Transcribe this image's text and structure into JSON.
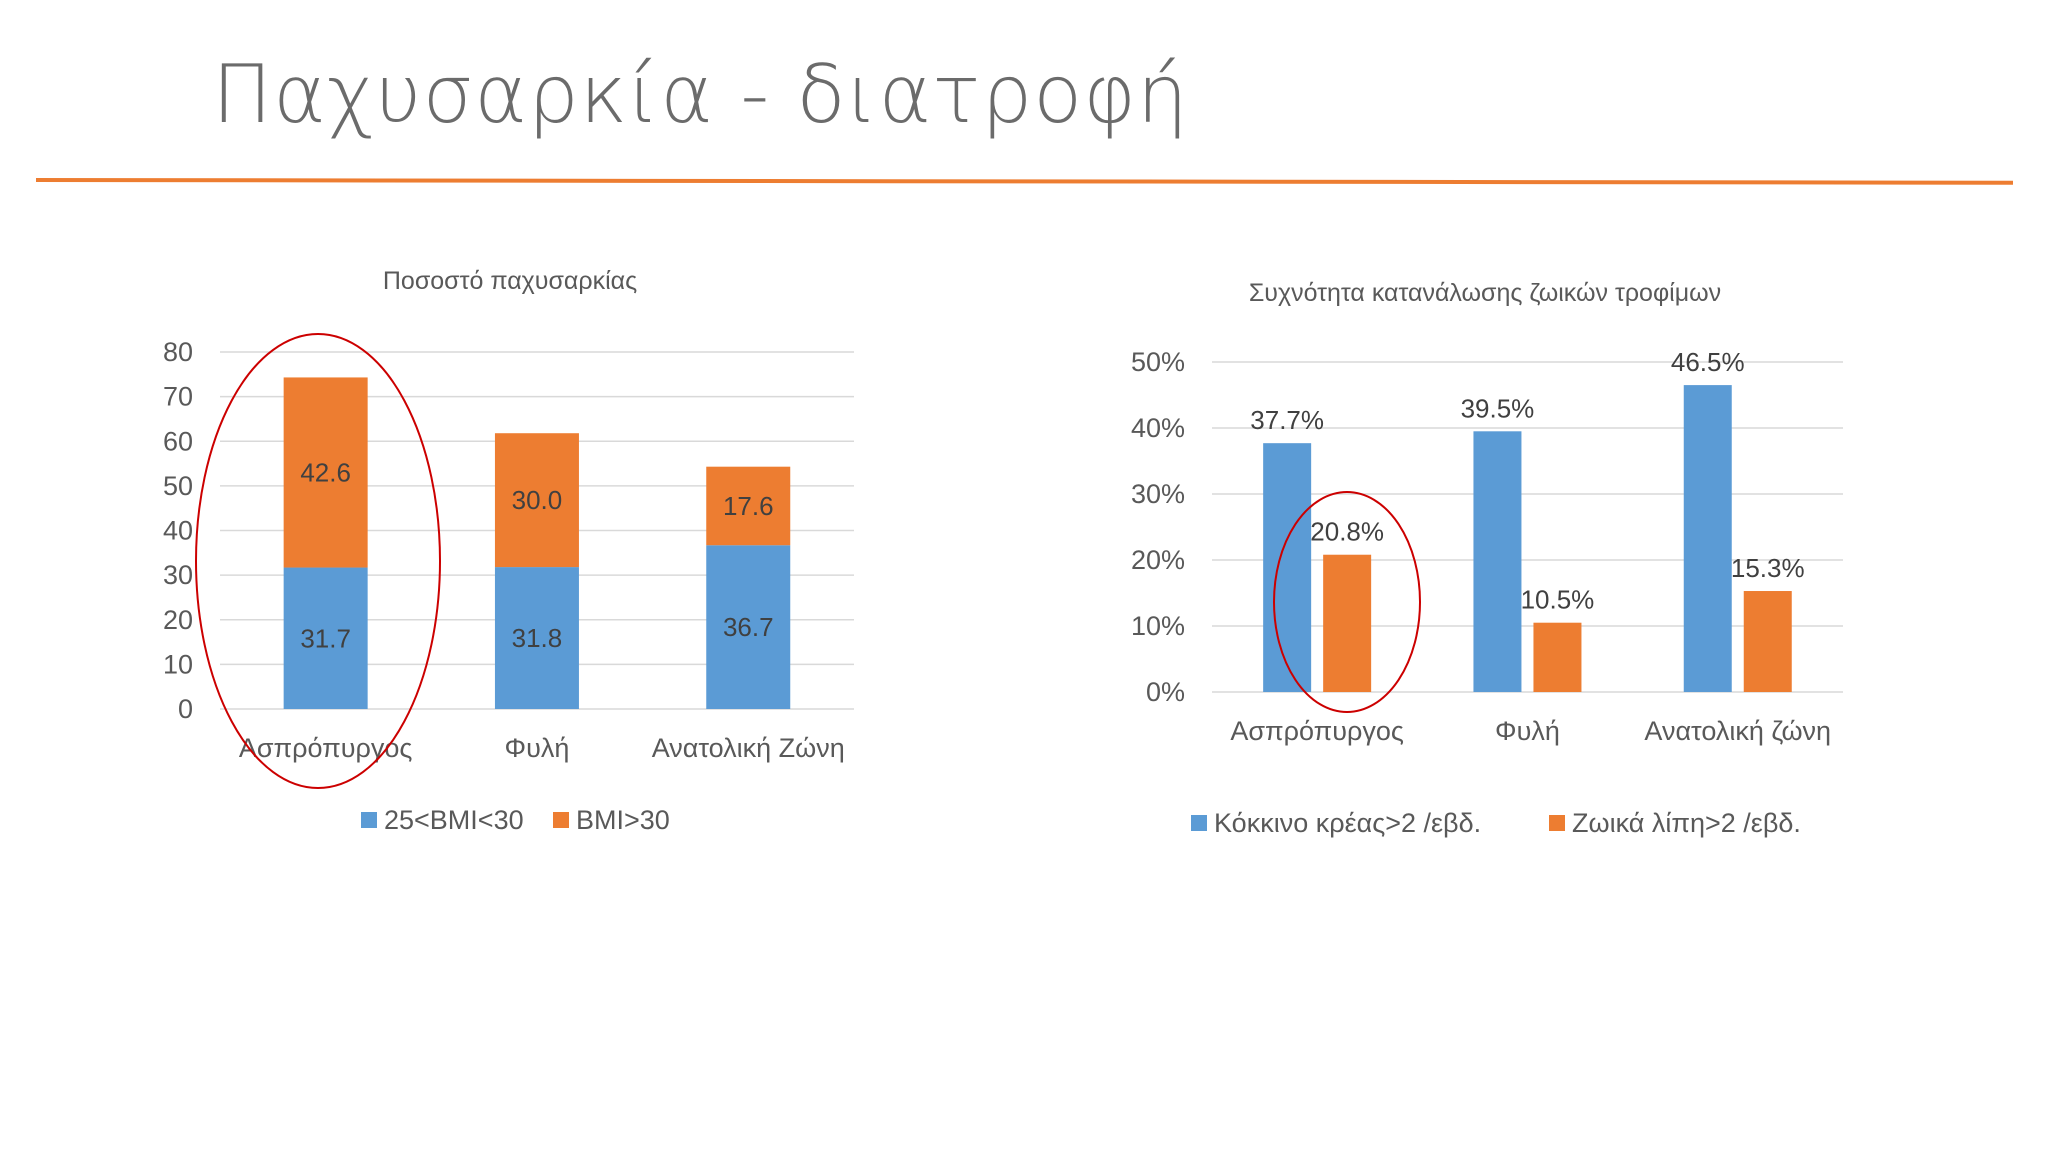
{
  "slide": {
    "title": "Παχυσαρκία - διατροφή"
  },
  "colors": {
    "blue": "#5b9bd5",
    "orange": "#ed7d31",
    "accent_line": "#ed7d31",
    "highlight": "#cc0000"
  },
  "chart_data": [
    {
      "type": "bar",
      "stacked": true,
      "title": "Ποσοστό παχυσαρκίας",
      "categories": [
        "Ασπρόπυργος",
        "Φυλή",
        "Ανατολική Ζώνη"
      ],
      "series": [
        {
          "name": "25<BMI<30",
          "color": "#5b9bd5",
          "values": [
            31.7,
            31.8,
            36.7
          ],
          "labels": [
            "31.7",
            "31.8",
            "36.7"
          ]
        },
        {
          "name": "BMI>30",
          "color": "#ed7d31",
          "values": [
            42.6,
            30.0,
            17.6
          ],
          "labels": [
            "42.6",
            "30.0",
            "17.6"
          ]
        }
      ],
      "ylim": [
        0,
        80
      ],
      "yticks": [
        "0",
        "10",
        "20",
        "30",
        "40",
        "50",
        "60",
        "70",
        "80"
      ],
      "grid": true,
      "legend": "bottom",
      "highlight": "Ασπρόπυργος"
    },
    {
      "type": "bar",
      "stacked": false,
      "title": "Συχνότητα κατανάλωσης ζωικών τροφίμων",
      "categories": [
        "Ασπρόπυργος",
        "Φυλή",
        "Ανατολική ζώνη"
      ],
      "series": [
        {
          "name": "Κόκκινο κρέας>2 /εβδ.",
          "color": "#5b9bd5",
          "values": [
            37.7,
            39.5,
            46.5
          ],
          "labels": [
            "37.7%",
            "39.5%",
            "46.5%"
          ]
        },
        {
          "name": "Ζωικά λίπη>2 /εβδ.",
          "color": "#ed7d31",
          "values": [
            20.8,
            10.5,
            15.3
          ],
          "labels": [
            "20.8%",
            "10.5%",
            "15.3%"
          ]
        }
      ],
      "ylim": [
        0,
        50
      ],
      "yticks": [
        "0%",
        "10%",
        "20%",
        "30%",
        "40%",
        "50%"
      ],
      "grid": true,
      "legend": "bottom",
      "highlight": "Ασπρόπυργος Ζωικά λίπη"
    }
  ]
}
